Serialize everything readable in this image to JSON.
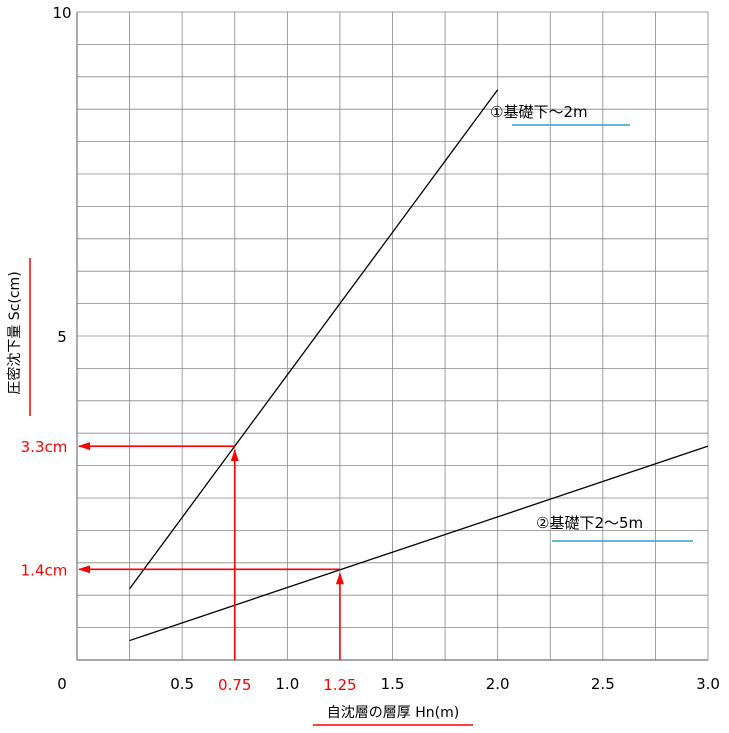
{
  "chart_data": {
    "type": "line",
    "title": "",
    "xlabel": "自沈層の層厚 Hn(m)",
    "ylabel": "圧密沈下量 Sc(cm)",
    "xlim": [
      0,
      3.0
    ],
    "ylim": [
      0,
      10
    ],
    "xticks": [
      0.5,
      1.0,
      1.5,
      2.0,
      2.5,
      3.0
    ],
    "xtick_labels": [
      "0.5",
      "1.0",
      "1.5",
      "2.0",
      "2.5",
      "3.0"
    ],
    "yticks": [
      0,
      5,
      10
    ],
    "ytick_labels": [
      "0",
      "5",
      "10"
    ],
    "grid": true,
    "series": [
      {
        "name": "①基礎下～2m",
        "x": [
          0.25,
          2.0
        ],
        "y": [
          1.1,
          8.8
        ]
      },
      {
        "name": "②基礎下2～5m",
        "x": [
          0.25,
          3.0
        ],
        "y": [
          0.3,
          3.3
        ]
      }
    ],
    "annotations": [
      {
        "x": 0.75,
        "y": 3.3,
        "x_label": "0.75",
        "y_label": "3.3cm",
        "color": "#ff0000"
      },
      {
        "x": 1.25,
        "y": 1.4,
        "x_label": "1.25",
        "y_label": "1.4cm",
        "color": "#ff0000"
      }
    ],
    "colors": {
      "line": "#000000",
      "grid": "#888888",
      "annotation": "#ff0000",
      "label_underline": "#2aa0d8",
      "axis_label_underline": "#ff0000"
    }
  }
}
